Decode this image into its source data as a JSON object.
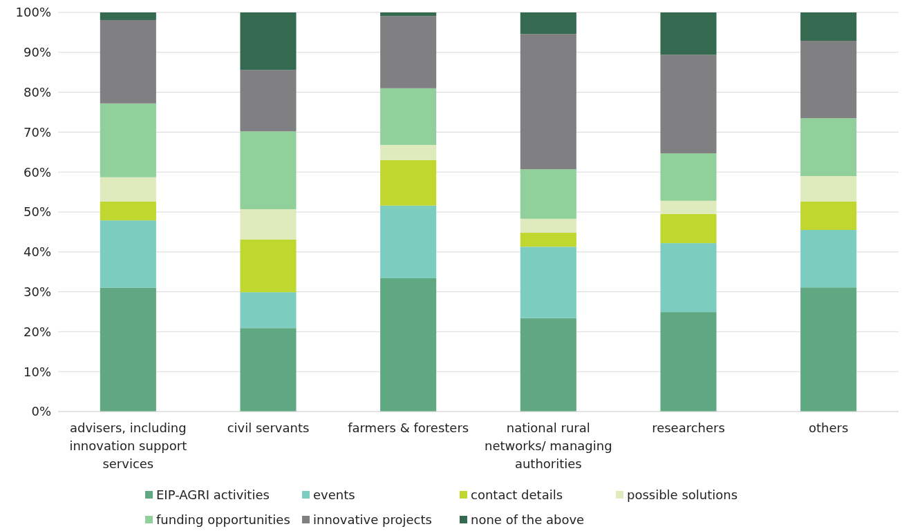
{
  "chart_data": {
    "type": "bar",
    "stacked": true,
    "categories": [
      "advisers, including innovation support services",
      "civil servants",
      "farmers & foresters",
      "national rural networks/ managing authorities",
      "researchers",
      "others"
    ],
    "series": [
      {
        "name": "EIP-AGRI activities",
        "color": "#5fa882",
        "values": [
          31.0,
          20.9,
          33.4,
          23.4,
          24.9,
          31.1
        ]
      },
      {
        "name": "events",
        "color": "#7ccdbf",
        "values": [
          16.9,
          9.0,
          18.2,
          17.9,
          17.3,
          14.4
        ]
      },
      {
        "name": "contact details",
        "color": "#c0d72f",
        "values": [
          4.7,
          13.2,
          11.4,
          3.5,
          7.3,
          7.1
        ]
      },
      {
        "name": "possible solutions",
        "color": "#dfeabd",
        "values": [
          6.1,
          7.6,
          3.8,
          3.5,
          3.3,
          6.4
        ]
      },
      {
        "name": "funding opportunities",
        "color": "#91d09a",
        "values": [
          18.5,
          19.5,
          14.2,
          12.4,
          11.9,
          14.5
        ]
      },
      {
        "name": "innovative projects",
        "color": "#808083",
        "values": [
          20.9,
          15.4,
          18.1,
          33.9,
          24.7,
          19.4
        ]
      },
      {
        "name": "none of the above",
        "color": "#366a50",
        "values": [
          1.9,
          14.4,
          0.9,
          5.4,
          10.6,
          7.1
        ]
      }
    ],
    "ylim": [
      0,
      100
    ],
    "yticks": [
      {
        "value": 0,
        "label": "0%"
      },
      {
        "value": 10,
        "label": "10%"
      },
      {
        "value": 20,
        "label": "20%"
      },
      {
        "value": 30,
        "label": "30%"
      },
      {
        "value": 40,
        "label": "40%"
      },
      {
        "value": 50,
        "label": "50%"
      },
      {
        "value": 60,
        "label": "60%"
      },
      {
        "value": 70,
        "label": "70%"
      },
      {
        "value": 80,
        "label": "80%"
      },
      {
        "value": 90,
        "label": "90%"
      },
      {
        "value": 100,
        "label": "100%"
      }
    ],
    "grid": "y",
    "legend": "bottom"
  }
}
